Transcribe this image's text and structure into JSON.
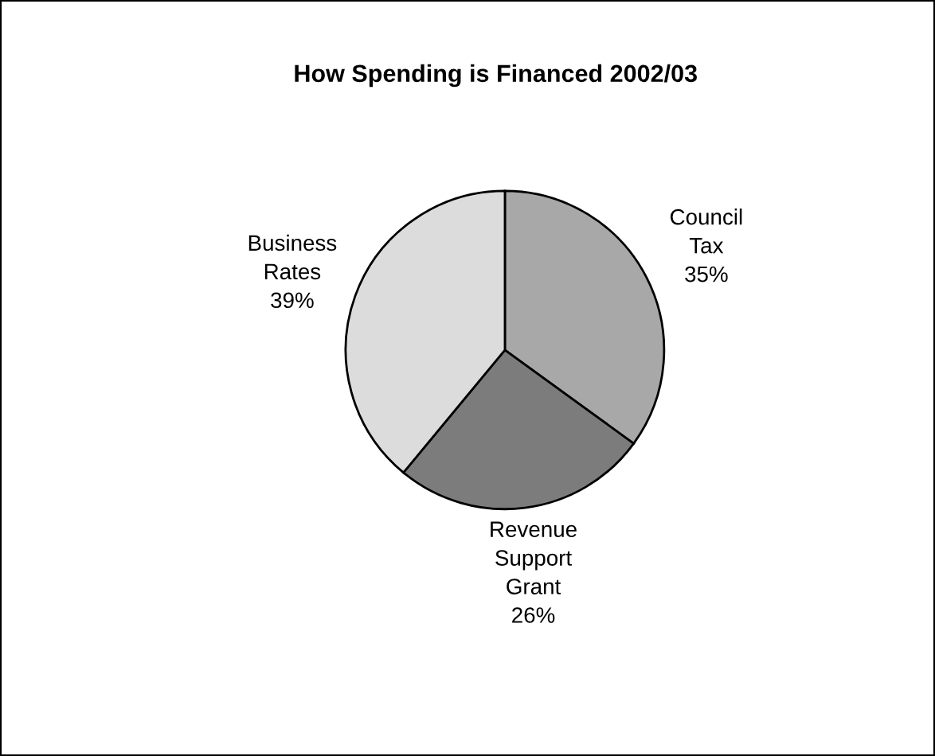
{
  "chart_data": {
    "type": "pie",
    "title": "How Spending is Financed 2002/03",
    "categories": [
      "Council Tax",
      "Revenue Support Grant",
      "Business Rates"
    ],
    "values": [
      35,
      26,
      39
    ],
    "colors": [
      "#a8a8a8",
      "#7c7c7c",
      "#dcdcdc"
    ],
    "value_labels": [
      "35%",
      "26%",
      "39%"
    ]
  }
}
